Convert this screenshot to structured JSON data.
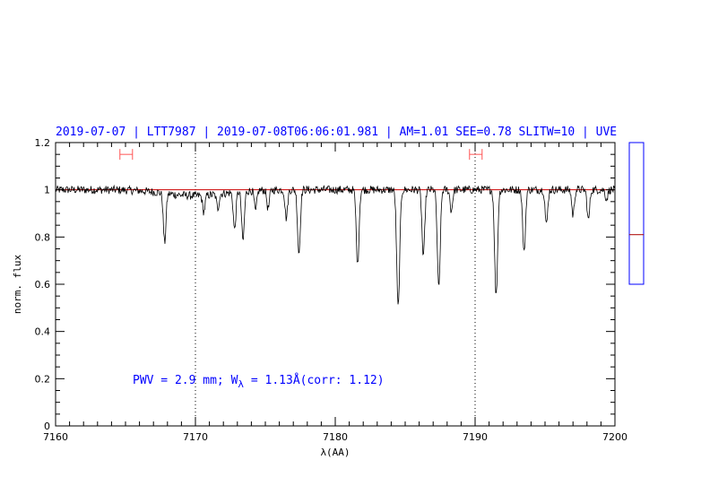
{
  "chart_data": {
    "type": "line",
    "title": "2019-07-07 | LTT7987 | 2019-07-08T06:06:01.981 | AM=1.01 SEE=0.78 SLITW=10 | UVE",
    "xlabel": "λ(AA)",
    "ylabel": "norm. flux",
    "xlim": [
      7160,
      7200
    ],
    "ylim": [
      0,
      1.2
    ],
    "x_ticks": [
      "7160",
      "7170",
      "7180",
      "7190",
      "7200"
    ],
    "y_ticks": [
      "0",
      "0.2",
      "0.4",
      "0.6",
      "0.8",
      "1",
      "1.2"
    ],
    "grid": false,
    "continuum_level": 1.0,
    "vertical_dotted_lines": [
      7170,
      7190
    ],
    "ranges": [
      {
        "x0": 7164.6,
        "x1": 7165.5,
        "y": 1.15
      },
      {
        "x0": 7189.6,
        "x1": 7190.5,
        "y": 1.15
      }
    ],
    "absorption_lines": [
      {
        "x": 7167.8,
        "y": 0.79
      },
      {
        "x": 7170.6,
        "y": 0.93
      },
      {
        "x": 7171.6,
        "y": 0.94
      },
      {
        "x": 7172.8,
        "y": 0.84
      },
      {
        "x": 7173.4,
        "y": 0.79
      },
      {
        "x": 7174.3,
        "y": 0.91
      },
      {
        "x": 7175.2,
        "y": 0.92
      },
      {
        "x": 7176.5,
        "y": 0.88
      },
      {
        "x": 7177.4,
        "y": 0.73
      },
      {
        "x": 7181.6,
        "y": 0.68
      },
      {
        "x": 7184.5,
        "y": 0.5
      },
      {
        "x": 7186.3,
        "y": 0.71
      },
      {
        "x": 7187.4,
        "y": 0.58
      },
      {
        "x": 7188.3,
        "y": 0.91
      },
      {
        "x": 7191.5,
        "y": 0.55
      },
      {
        "x": 7193.5,
        "y": 0.73
      },
      {
        "x": 7195.1,
        "y": 0.85
      },
      {
        "x": 7197.0,
        "y": 0.89
      },
      {
        "x": 7198.1,
        "y": 0.87
      },
      {
        "x": 7199.4,
        "y": 0.96
      }
    ],
    "annotation": {
      "pre": "PWV = 2.9 mm; W",
      "sub": "λ",
      "post": " = 1.13Å(corr: 1.12)"
    },
    "side_indicator": {
      "ylim": [
        0.6,
        1.2
      ],
      "value": 0.81
    },
    "colors": {
      "frame": "#000000",
      "spectrum": "#000000",
      "continuum": "#cc0000",
      "text": "#0000ff",
      "range": "#ff5555",
      "indicator_frame": "#0000ff",
      "indicator_mark": "#aa0000"
    }
  }
}
